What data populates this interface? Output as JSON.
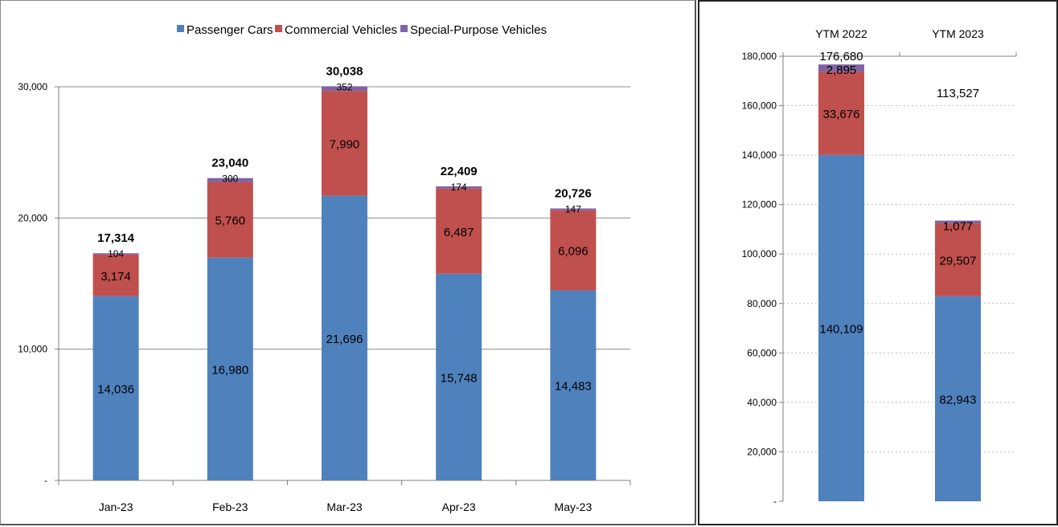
{
  "colors": {
    "passenger": "#4F81BD",
    "commercial": "#C0504D",
    "special": "#8064A2"
  },
  "chart_data": [
    {
      "type": "bar",
      "stacked": true,
      "categories": [
        "Jan-23",
        "Feb-23",
        "Mar-23",
        "Apr-23",
        "May-23"
      ],
      "series": [
        {
          "name": "Passenger Cars",
          "values": [
            14036,
            16980,
            21696,
            15748,
            14483
          ],
          "labels": [
            "14,036",
            "16,980",
            "21,696",
            "15,748",
            "14,483"
          ]
        },
        {
          "name": "Commercial Vehicles",
          "values": [
            3174,
            5760,
            7990,
            6487,
            6096
          ],
          "labels": [
            "3,174",
            "5,760",
            "7,990",
            "6,487",
            "6,096"
          ]
        },
        {
          "name": "Special-Purpose Vehicles",
          "values": [
            104,
            300,
            352,
            174,
            147
          ],
          "labels": [
            "104",
            "300",
            "352",
            "174",
            "147"
          ]
        }
      ],
      "totals": [
        "17,314",
        "23,040",
        "30,038",
        "22,409",
        "20,726"
      ],
      "ylim": [
        0,
        30000
      ],
      "yticks": [
        0,
        10000,
        20000,
        30000
      ],
      "ytick_labels": [
        "-",
        "10,000",
        "20,000",
        "30,000"
      ],
      "grid": true,
      "legend_position": "top"
    },
    {
      "type": "bar",
      "stacked": true,
      "categories": [
        "YTM 2022",
        "YTM 2023"
      ],
      "series": [
        {
          "name": "Passenger Cars",
          "values": [
            140109,
            82943
          ],
          "labels": [
            "140,109",
            "82,943"
          ]
        },
        {
          "name": "Commercial Vehicles",
          "values": [
            33676,
            29507
          ],
          "labels": [
            "33,676",
            "29,507"
          ]
        },
        {
          "name": "Special-Purpose Vehicles",
          "values": [
            2895,
            1077
          ],
          "labels": [
            "2,895",
            "1,077"
          ]
        }
      ],
      "totals": [
        "176,680",
        "113,527"
      ],
      "ylim": [
        0,
        180000
      ],
      "yticks": [
        0,
        20000,
        40000,
        60000,
        80000,
        100000,
        120000,
        140000,
        160000,
        180000
      ],
      "ytick_labels": [
        "-",
        "20,000",
        "40,000",
        "60,000",
        "80,000",
        "100,000",
        "120,000",
        "140,000",
        "160,000",
        "180,000"
      ],
      "grid": "dotted",
      "category_axis_position": "top"
    }
  ]
}
